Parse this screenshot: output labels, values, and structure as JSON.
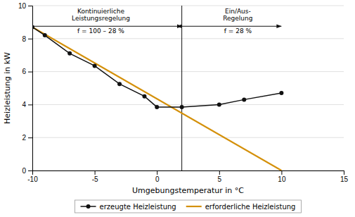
{
  "chart_data": {
    "type": "line",
    "x_label": "Umgebungstemperatur in °C",
    "y_label": "Heizleistung in kW",
    "series": [
      {
        "name": "erzeugte Heizleistung",
        "color": "#111111",
        "marker": "circle",
        "x": [
          -10,
          -9,
          -7,
          -5,
          -3,
          -1,
          0,
          2,
          5,
          7,
          10
        ],
        "values": [
          8.7,
          8.2,
          7.1,
          6.35,
          5.25,
          4.5,
          3.85,
          3.85,
          4.0,
          4.3,
          4.7
        ]
      },
      {
        "name": "erforderliche Heizleistung",
        "color": "#D4900A",
        "x": [
          -10,
          10
        ],
        "values": [
          8.7,
          0.0
        ]
      }
    ],
    "xlim": [
      -10,
      15
    ],
    "xticks": [
      -10,
      -5,
      0,
      5,
      10,
      15
    ],
    "ylim": [
      0,
      10
    ],
    "yticks": [
      0,
      2,
      4,
      6,
      8,
      10
    ],
    "grid": true,
    "legend": "bottom",
    "vlines": [
      {
        "x": 2,
        "color": "#111111"
      }
    ],
    "arrows": [
      {
        "x_start": -10,
        "x_end": 2,
        "y": 8.75
      },
      {
        "x_start": 2,
        "x_end": 10,
        "y": 8.75
      }
    ],
    "annotations": [
      {
        "text": "Kontinuierliche",
        "x": -4.5,
        "y": 9.65
      },
      {
        "text": "Leistungsregelung",
        "x": -4.5,
        "y": 9.25
      },
      {
        "text": "f = 100 – 28 %",
        "x": -4.5,
        "y": 8.45
      },
      {
        "text": "Ein/Aus-",
        "x": 6.5,
        "y": 9.65
      },
      {
        "text": "Regelung",
        "x": 6.5,
        "y": 9.25
      },
      {
        "text": "f = 28 %",
        "x": 6.5,
        "y": 8.45
      }
    ]
  }
}
